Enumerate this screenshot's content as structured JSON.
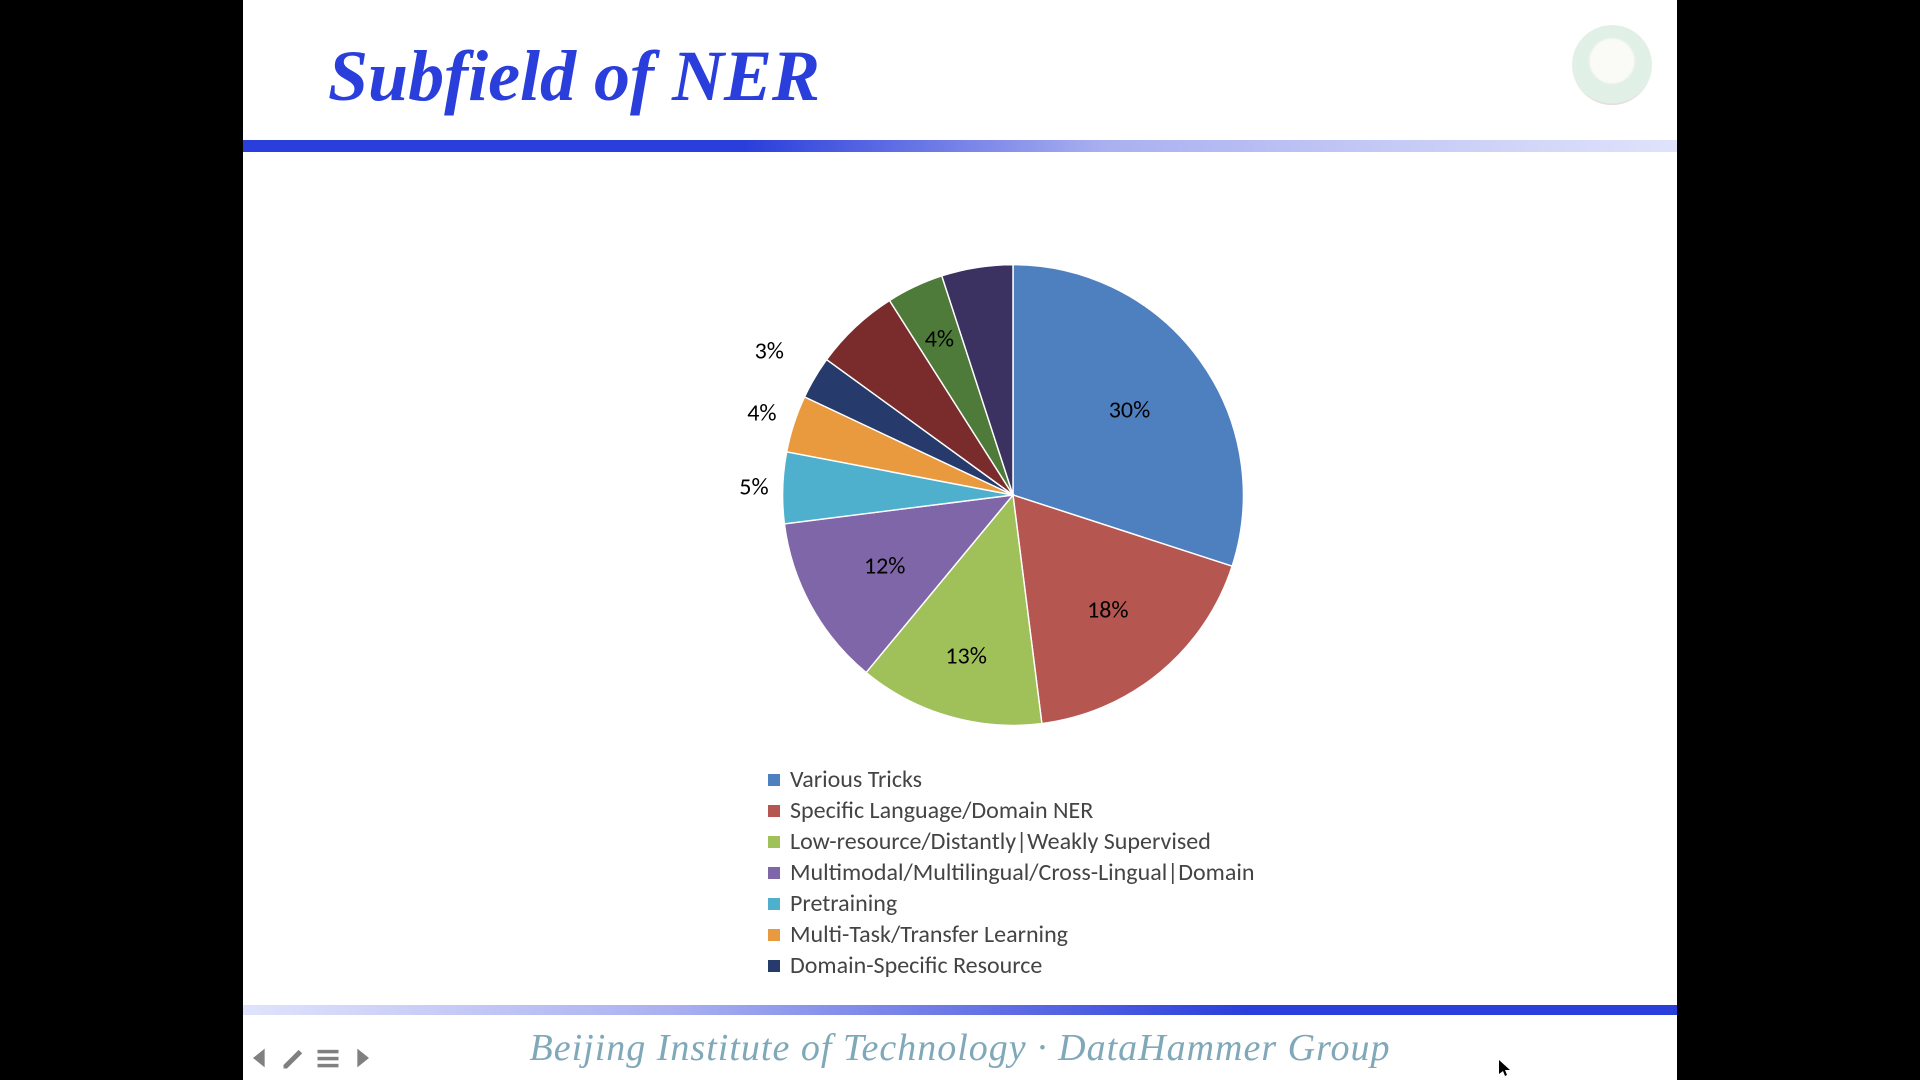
{
  "title": "Subfield of NER",
  "footer": "Beijing Institute of Technology · DataHammer Group",
  "colors": {
    "title": "#2a3edb",
    "footer_text": "#7fa8b9",
    "bar_from": "#2a3edb",
    "bar_to": "#e0e3fb"
  },
  "pie_chart": {
    "type": "pie",
    "background_color": "#ffffff",
    "start_angle": -90,
    "radius": 240,
    "label_fontsize": 24,
    "slices": [
      {
        "label": "Various Tricks",
        "value": 30,
        "shown": "30%",
        "color": "#4e7fbf"
      },
      {
        "label": "Specific Language/Domain NER",
        "value": 18,
        "shown": "18%",
        "color": "#b55650"
      },
      {
        "label": "Low-resource/Distantly|Weakly Supervised",
        "value": 13,
        "shown": "13%",
        "color": "#a0c05a"
      },
      {
        "label": "Multimodal/Multilingual/Cross-Lingual|Domain",
        "value": 12,
        "shown": "12%",
        "color": "#7e66a8"
      },
      {
        "label": "Pretraining",
        "value": 5,
        "shown": "5%",
        "color": "#4fb0ce"
      },
      {
        "label": "Multi-Task/Transfer Learning",
        "value": 4,
        "shown": "4%",
        "color": "#e99a3f"
      },
      {
        "label": "Domain-Specific Resource",
        "value": 3,
        "shown": "3%",
        "color": "#263a6b"
      },
      {
        "label": "(unlabeled dark red)",
        "value": 6,
        "shown": "",
        "color": "#7a2c2c"
      },
      {
        "label": "(unlabeled green)",
        "value": 4,
        "shown": "4%",
        "color": "#4e7a3a"
      },
      {
        "label": "(unlabeled dark purple)",
        "value": 5,
        "shown": "",
        "color": "#3c3262"
      }
    ],
    "legend_items": [
      0,
      1,
      2,
      3,
      4,
      5,
      6
    ],
    "label_offsets": {
      "0": [
        0.6,
        0
      ],
      "1": [
        0.62,
        0
      ],
      "2": [
        0.7,
        0
      ],
      "3": [
        0.61,
        0
      ],
      "4": [
        1.08,
        0
      ],
      "5": [
        1.1,
        0
      ],
      "6": [
        1.18,
        0
      ],
      "8": [
        0.72,
        0
      ]
    }
  }
}
